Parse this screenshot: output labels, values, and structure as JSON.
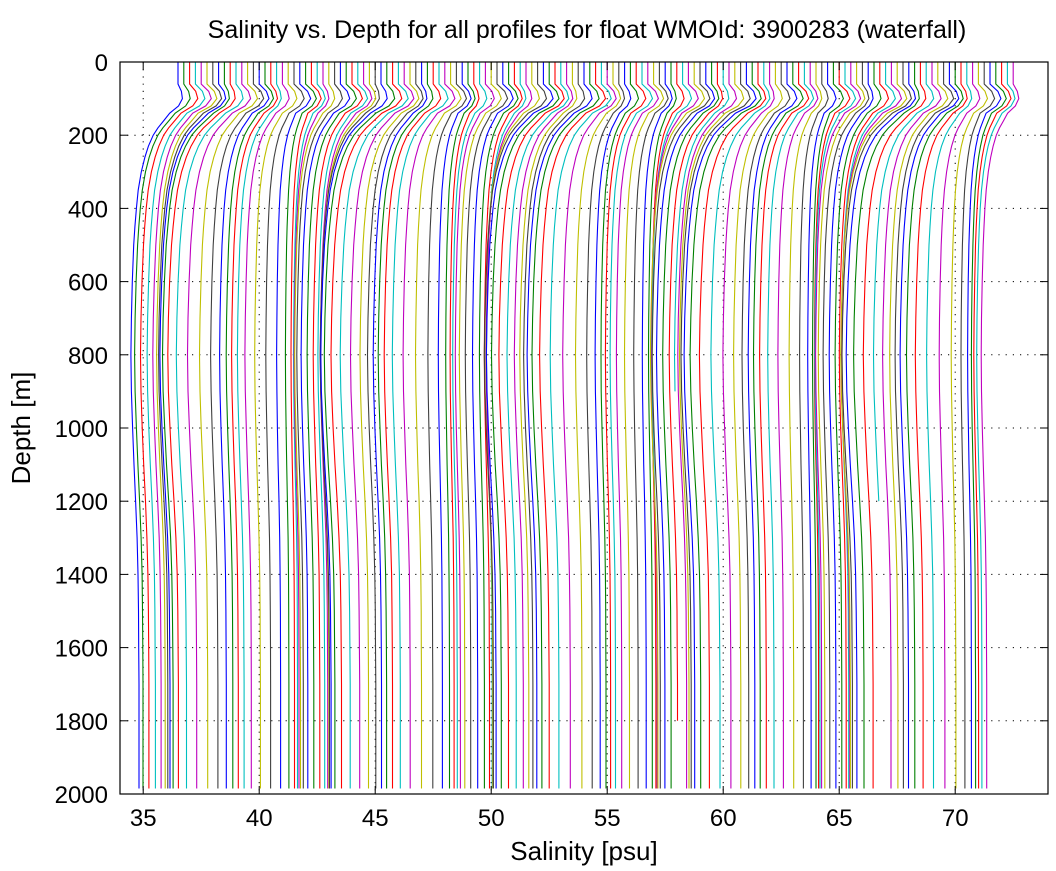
{
  "chart_data": {
    "type": "line",
    "title": "Salinity vs. Depth for all profiles for float WMOId: 3900283 (waterfall)",
    "xlabel": "Salinity [psu]",
    "ylabel": "Depth [m]",
    "xlim": [
      34,
      74
    ],
    "ylim": [
      0,
      2000
    ],
    "y_reversed": true,
    "xticks": [
      35,
      40,
      45,
      50,
      55,
      60,
      65,
      70
    ],
    "yticks": [
      0,
      200,
      400,
      600,
      800,
      1000,
      1200,
      1400,
      1600,
      1800,
      2000
    ],
    "grid": "dotted",
    "n_profiles": 145,
    "first_profile_surface_salinity": 36.5,
    "waterfall_offset_per_profile_psu": 0.25,
    "profile_max_depth_m": 1985,
    "colors": [
      "#0000ff",
      "#008000",
      "#ff0000",
      "#00bfbf",
      "#bf00bf",
      "#bfbf00",
      "#404040"
    ]
  }
}
